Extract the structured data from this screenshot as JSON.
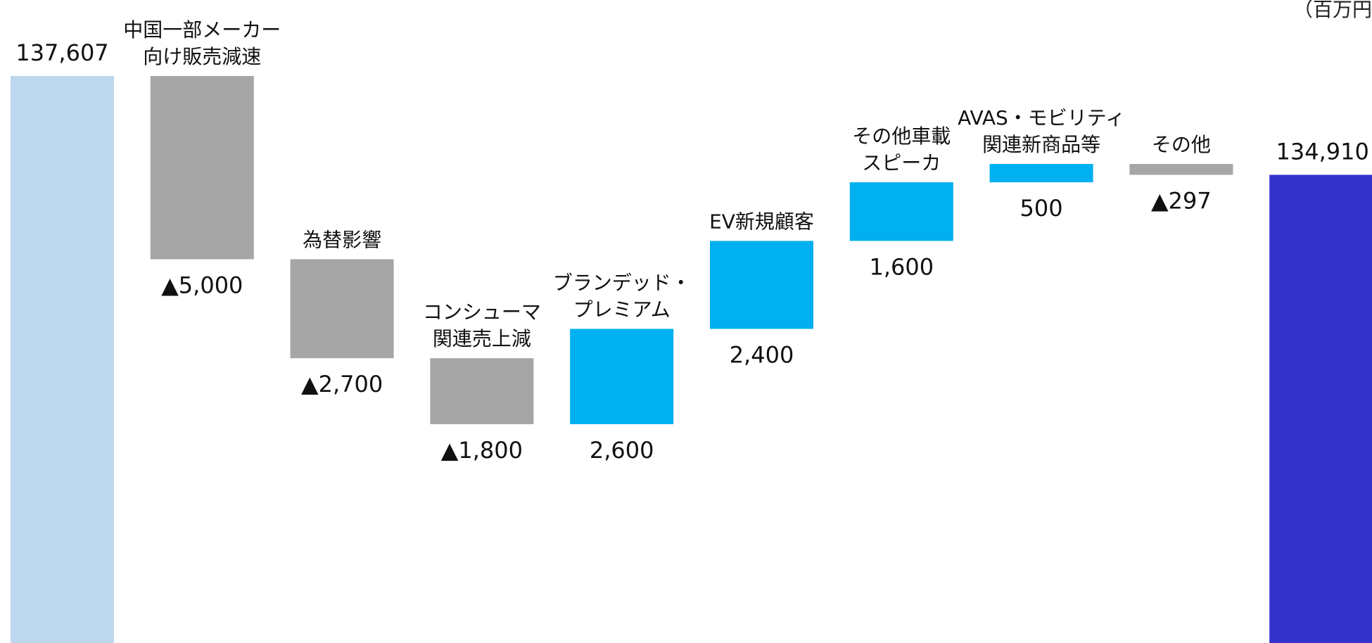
{
  "unit_label": "（百万円）",
  "colors": {
    "start": "#bdd7ee",
    "end": "#3333cc",
    "decrease": "#a6a6a6",
    "increase": "#00b0f0"
  },
  "chart_data": {
    "type": "bar",
    "subtype": "waterfall",
    "start": {
      "value": 137607,
      "label": "137,607"
    },
    "end": {
      "value": 134910,
      "label": "134,910"
    },
    "steps": [
      {
        "label_lines": [
          "中国一部メーカー",
          "向け販売減速"
        ],
        "value": -5000,
        "value_label": "▲5,000"
      },
      {
        "label_lines": [
          "為替影響"
        ],
        "value": -2700,
        "value_label": "▲2,700"
      },
      {
        "label_lines": [
          "コンシューマ",
          "関連売上減"
        ],
        "value": -1800,
        "value_label": "▲1,800"
      },
      {
        "label_lines": [
          "ブランデッド・",
          "プレミアム"
        ],
        "value": 2600,
        "value_label": "2,600"
      },
      {
        "label_lines": [
          "EV新規顧客"
        ],
        "value": 2400,
        "value_label": "2,400"
      },
      {
        "label_lines": [
          "その他車載",
          "スピーカ"
        ],
        "value": 1600,
        "value_label": "1,600"
      },
      {
        "label_lines": [
          "AVAS・モビリティ",
          "関連新商品等"
        ],
        "value": 500,
        "value_label": "500"
      },
      {
        "label_lines": [
          "その他"
        ],
        "value": -297,
        "value_label": "▲297"
      }
    ]
  }
}
